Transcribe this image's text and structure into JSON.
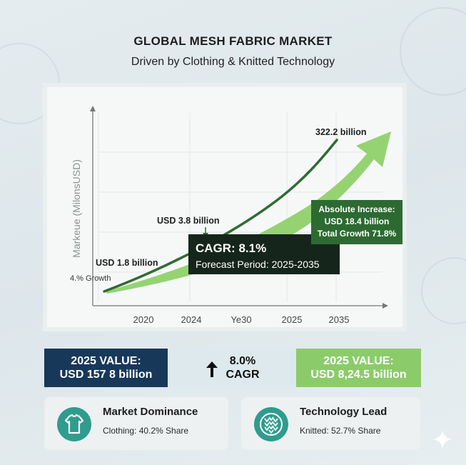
{
  "header": {
    "title": "GLOBAL MESH FABRIC MARKET",
    "subtitle": "Driven by Clothing & Knitted Technology"
  },
  "chart_data": {
    "type": "line",
    "title": "",
    "xlabel": "",
    "ylabel": "Markeue (MilonsUSD)",
    "x_tick_labels": [
      "2020",
      "2024",
      "Ye30",
      "2025",
      "2035"
    ],
    "series": [
      {
        "values": [
          1.8,
          3.8,
          322.2
        ],
        "color": "#2f6b34"
      },
      {
        "color": "#8fd16a"
      }
    ],
    "annotations": {
      "start_growth": "4.% Growth",
      "start_value": "USD 1.8 billion",
      "mid_value": "USD 3.8 billion",
      "end_value": "322.2 billion",
      "cagr_title": "CAGR: 8.1%",
      "cagr_period": "Forecast Period: 2025-2035",
      "increase_line1": "Absolute Increase:",
      "increase_line2": "USD 18.4 billion",
      "increase_line3": "Total Growth 71.8%"
    },
    "grid": true,
    "legend": "none"
  },
  "stats": {
    "left_line1": "2025 VALUE:",
    "left_line2": "USD 157 8 billion",
    "mid_line1": "8.0%",
    "mid_line2": "CAGR",
    "mid_icon": "arrow-up-icon",
    "right_line1": "2025 VALUE:",
    "right_line2": "USD 8,24.5 billion"
  },
  "cards": {
    "dominance_title": "Market Dominance",
    "dominance_sub": "Clothing: 40.2% Share",
    "dominance_icon": "tshirt-icon",
    "tech_title": "Technology Lead",
    "tech_sub": "Knitted: 52.7% Share",
    "tech_icon": "knit-fabric-icon"
  },
  "colors": {
    "dark_navy": "#18385a",
    "accent_green": "#8ccb6a",
    "line_green": "#2f6b34",
    "teal": "#2f9c8e"
  }
}
